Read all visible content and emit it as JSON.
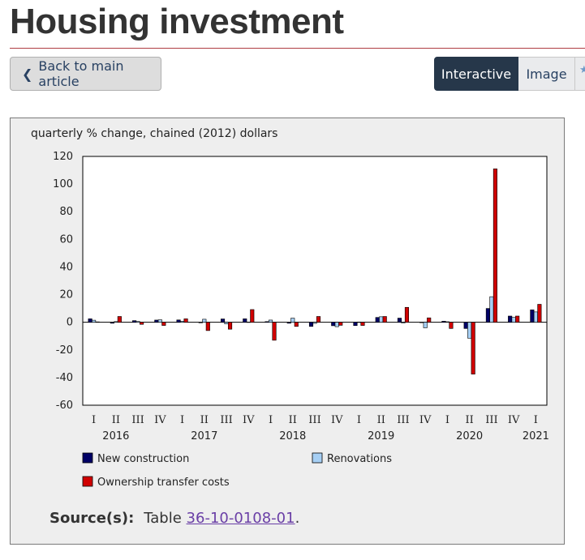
{
  "header": {
    "title": "Housing investment",
    "back_label": "Back to main article",
    "tabs": [
      {
        "label": "Interactive",
        "active": true
      },
      {
        "label": "Image",
        "active": false
      }
    ]
  },
  "source": {
    "label": "Source(s):",
    "prefix": "Table",
    "link_text": "36-10-0108-01",
    "suffix": "."
  },
  "colors": {
    "new_construction": "#000066",
    "renovations": "#a6cff4",
    "ownership_transfer_costs": "#d00000"
  },
  "chart_data": {
    "type": "bar",
    "title": "",
    "ylabel": "quarterly % change, chained (2012) dollars",
    "xlabel": "",
    "ylim": [
      -60,
      120
    ],
    "yticks": [
      120,
      100,
      80,
      60,
      40,
      20,
      0,
      -20,
      -40,
      -60
    ],
    "grid": false,
    "legend_position": "bottom",
    "categories": [
      "I",
      "II",
      "III",
      "IV",
      "I",
      "II",
      "III",
      "IV",
      "I",
      "II",
      "III",
      "IV",
      "I",
      "II",
      "III",
      "IV",
      "I",
      "II",
      "III",
      "IV",
      "I"
    ],
    "year_labels": [
      {
        "label": "2016",
        "index": 1
      },
      {
        "label": "2017",
        "index": 5
      },
      {
        "label": "2018",
        "index": 9
      },
      {
        "label": "2019",
        "index": 13
      },
      {
        "label": "2020",
        "index": 17
      },
      {
        "label": "2021",
        "index": 20
      }
    ],
    "series": [
      {
        "name": "New construction",
        "values": [
          2.5,
          -0.7,
          1.2,
          1.6,
          1.7,
          -0.4,
          2.4,
          2.5,
          0.5,
          -0.7,
          -3,
          -2.5,
          -2.4,
          3.5,
          3,
          -0.3,
          0.8,
          -4.5,
          10,
          4.5,
          9
        ]
      },
      {
        "name": "Renovations",
        "values": [
          1.5,
          0.5,
          0.6,
          1.8,
          0.8,
          2.2,
          -1.2,
          0.2,
          1.6,
          3,
          -0.8,
          -3.2,
          0.2,
          4,
          -0.5,
          -4,
          0.4,
          -11.5,
          18.5,
          3.5,
          7.5
        ]
      },
      {
        "name": "Ownership transfer costs",
        "values": [
          0.3,
          4.2,
          -1.5,
          -2.3,
          2.5,
          -6,
          -5,
          9.2,
          -13,
          -3,
          4.2,
          -2.2,
          -2.3,
          4.2,
          10.8,
          3.2,
          -4.5,
          -37.5,
          111,
          4.5,
          13
        ]
      }
    ]
  }
}
